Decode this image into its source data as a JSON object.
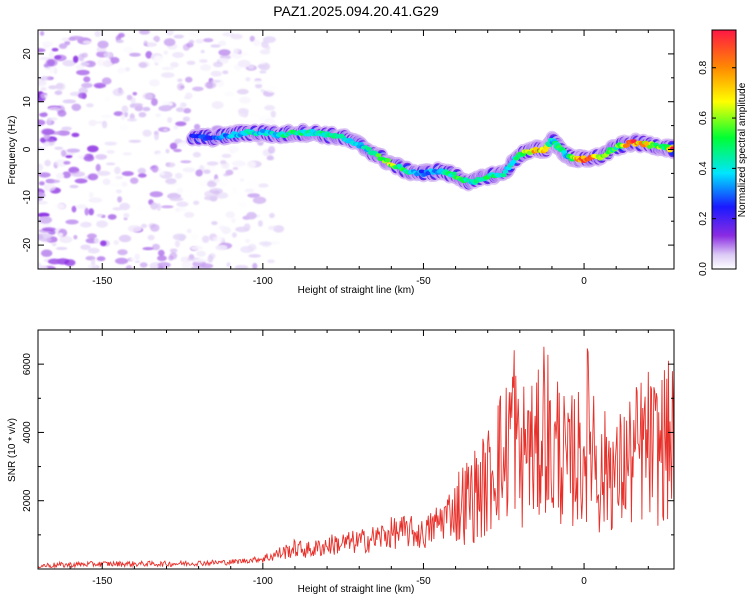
{
  "title": "PAZ1.2025.094.20.41.G29",
  "chart_data": [
    {
      "type": "heatmap",
      "title": "PAZ1.2025.094.20.41.G29",
      "xlabel": "Height of straight line (km)",
      "ylabel": "Frequency (Hz)",
      "xlim": [
        -170,
        28
      ],
      "ylim": [
        -25,
        25
      ],
      "xticks": [
        -150,
        -100,
        -50,
        0
      ],
      "yticks": [
        -20,
        -10,
        0,
        10,
        20
      ],
      "colorbar": {
        "label": "Normalized spectral amplitude",
        "range": [
          0,
          0.95
        ],
        "ticks": [
          0.0,
          0.2,
          0.4,
          0.6,
          0.8
        ],
        "colormap": "white-violet-blue-cyan-green-yellow-orange-red"
      },
      "signal_track": {
        "x_km": [
          -122,
          -115,
          -110,
          -105,
          -100,
          -95,
          -90,
          -85,
          -80,
          -75,
          -70,
          -65,
          -60,
          -55,
          -50,
          -45,
          -40,
          -35,
          -30,
          -25,
          -20,
          -15,
          -12,
          -10,
          -8,
          -5,
          -2,
          0,
          5,
          10,
          15,
          20,
          25,
          28
        ],
        "freq_hz": [
          2.5,
          2.5,
          3,
          3.5,
          3.5,
          3,
          3.5,
          3.5,
          3,
          2.5,
          1,
          -1,
          -3,
          -4.5,
          -5,
          -4.5,
          -5.5,
          -7,
          -5.5,
          -5,
          -1,
          0,
          0,
          2,
          0.5,
          -1.5,
          -2,
          -2,
          -1.5,
          0.5,
          1.5,
          1,
          0.5,
          0
        ],
        "amplitude": [
          0.25,
          0.3,
          0.35,
          0.45,
          0.4,
          0.45,
          0.5,
          0.45,
          0.5,
          0.45,
          0.35,
          0.5,
          0.65,
          0.45,
          0.3,
          0.4,
          0.55,
          0.45,
          0.5,
          0.45,
          0.5,
          0.85,
          0.7,
          0.4,
          0.55,
          0.4,
          0.8,
          0.95,
          0.65,
          0.55,
          0.9,
          0.7,
          0.55,
          0.9
        ]
      },
      "noise_region": {
        "x_from_km": -170,
        "x_to_km": -95,
        "freq_range_hz": [
          -25,
          25
        ],
        "amplitude_max": 0.15
      }
    },
    {
      "type": "line",
      "xlabel": "Height of straight line (km)",
      "ylabel": "SNR (10 * v/v)",
      "xlim": [
        -170,
        28
      ],
      "ylim": [
        0,
        7000
      ],
      "xticks": [
        -150,
        -100,
        -50,
        0
      ],
      "yticks": [
        2000,
        4000,
        6000
      ],
      "color": "#e8302a",
      "series": [
        {
          "x": [
            -170,
            -150,
            -130,
            -110,
            -100,
            -95,
            -90,
            -85,
            -80,
            -75,
            -70,
            -65,
            -60,
            -55,
            -50,
            -45,
            -40,
            -35,
            -30,
            -27,
            -25,
            -22,
            -20,
            -18,
            -15,
            -12,
            -10,
            -8,
            -5,
            -3,
            -1,
            1,
            3,
            5,
            8,
            10,
            12,
            15,
            18,
            20,
            22,
            25,
            28
          ],
          "y": [
            100,
            150,
            150,
            200,
            300,
            450,
            600,
            550,
            700,
            750,
            800,
            900,
            1050,
            1100,
            1000,
            1400,
            1800,
            2100,
            2500,
            3500,
            3000,
            4700,
            2800,
            3800,
            3200,
            4600,
            3000,
            3700,
            2800,
            3400,
            3100,
            4000,
            3900,
            2500,
            3200,
            2600,
            3000,
            3200,
            3500,
            3600,
            3400,
            3700,
            3700
          ]
        }
      ]
    }
  ]
}
